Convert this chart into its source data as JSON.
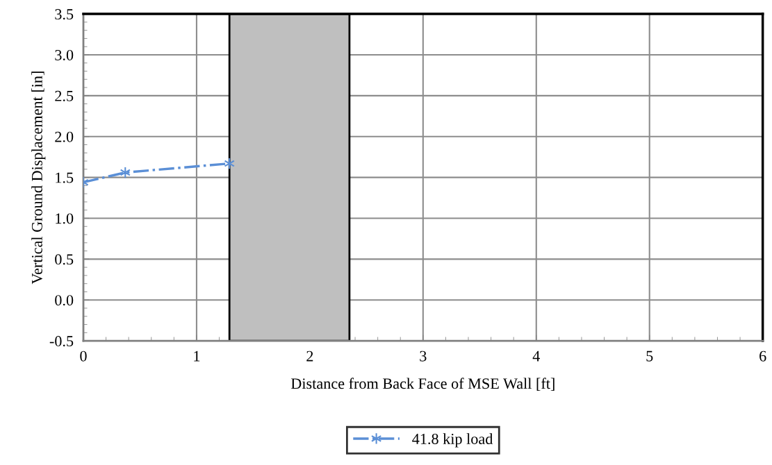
{
  "chart_data": {
    "type": "line",
    "xlabel": "Distance from Back Face of MSE Wall [ft]",
    "ylabel": "Vertical Ground Displacement [in]",
    "x": [
      0,
      0.37,
      1.29
    ],
    "series": [
      {
        "name": "41.8 kip load",
        "color": "#5b8fd6",
        "values": [
          1.44,
          1.56,
          1.67
        ]
      }
    ],
    "xlim": [
      0,
      6
    ],
    "xticks": [
      0,
      1,
      2,
      3,
      4,
      5,
      6
    ],
    "ylim": [
      -0.5,
      3.5
    ],
    "yticks": [
      {
        "value": -0.5,
        "label": "-0.5"
      },
      {
        "value": 0,
        "label": "0.0"
      },
      {
        "value": 0.5,
        "label": "0.5"
      },
      {
        "value": 1,
        "label": "1.0"
      },
      {
        "value": 1.5,
        "label": "1.5"
      },
      {
        "value": 2,
        "label": "2.0"
      },
      {
        "value": 2.5,
        "label": "2.5"
      },
      {
        "value": 3,
        "label": "3.0"
      },
      {
        "value": 3.5,
        "label": "3.5"
      }
    ],
    "bands": [
      {
        "axis": "x",
        "from": 1.29,
        "to": 2.35,
        "color": "#bfbfbf"
      }
    ],
    "grid": true,
    "legend": "bottom",
    "marker": "cross",
    "line_style": "dashdot"
  }
}
